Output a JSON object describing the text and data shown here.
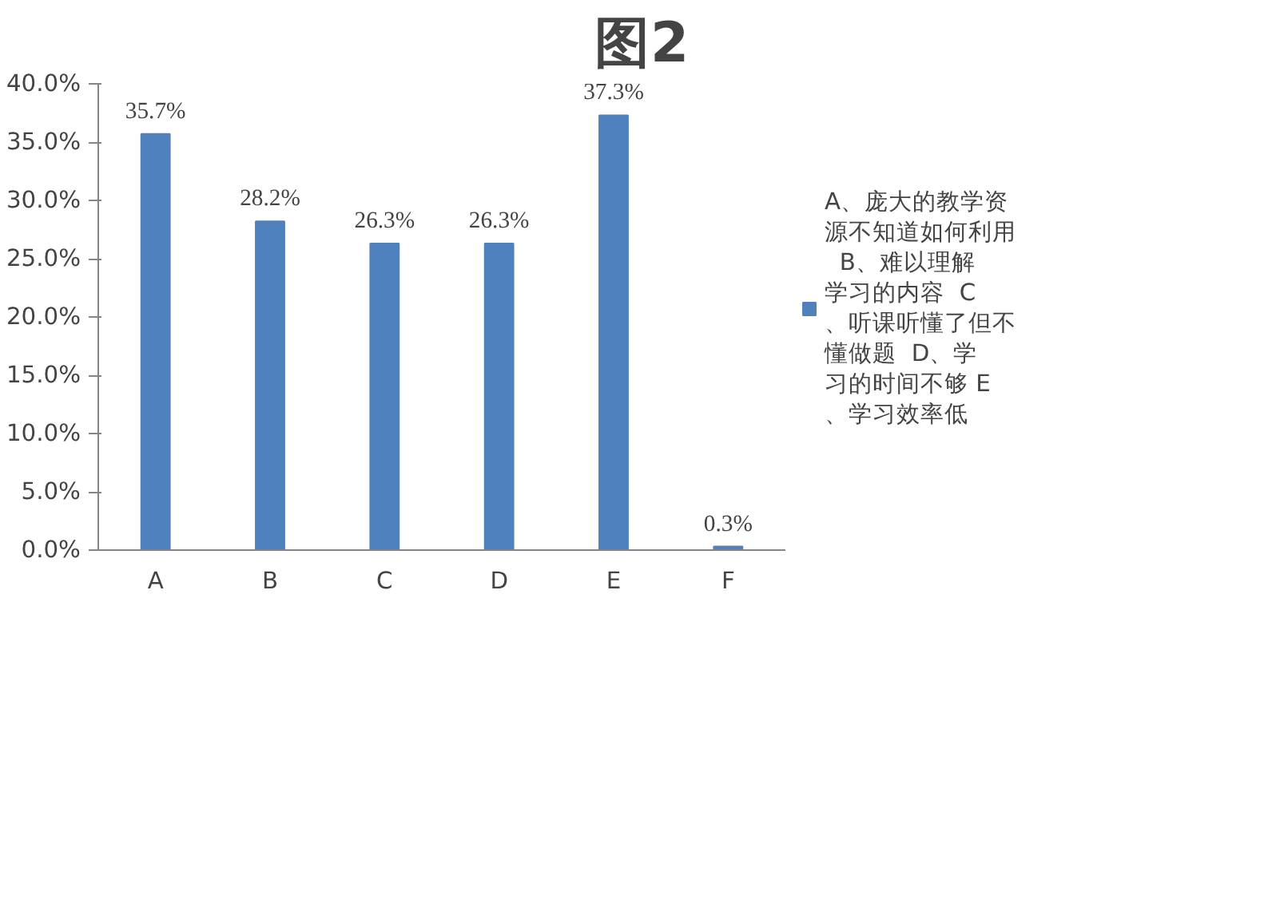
{
  "chart_data": {
    "type": "bar",
    "title": "图2",
    "categories": [
      "A",
      "B",
      "C",
      "D",
      "E",
      "F"
    ],
    "series": [
      {
        "name": "A、庞大的教学资源不知道如何利用  B、难以理解学习的内容  C、听课听懂了但不懂做题  D、学习的时间不够 E、学习效率低",
        "color": "#4f81bd",
        "values": [
          35.7,
          28.2,
          26.3,
          26.3,
          37.3,
          0.3
        ]
      }
    ],
    "value_labels": [
      "35.7%",
      "28.2%",
      "26.3%",
      "26.3%",
      "37.3%",
      "0.3%"
    ],
    "ylim": [
      0,
      40
    ],
    "yticks": [
      {
        "value": 0,
        "label": "0.0%"
      },
      {
        "value": 5,
        "label": "5.0%"
      },
      {
        "value": 10,
        "label": "10.0%"
      },
      {
        "value": 15,
        "label": "15.0%"
      },
      {
        "value": 20,
        "label": "20.0%"
      },
      {
        "value": 25,
        "label": "25.0%"
      },
      {
        "value": 30,
        "label": "30.0%"
      },
      {
        "value": 35,
        "label": "35.0%"
      },
      {
        "value": 40,
        "label": "40.0%"
      }
    ],
    "grid": false,
    "legend": "right"
  }
}
